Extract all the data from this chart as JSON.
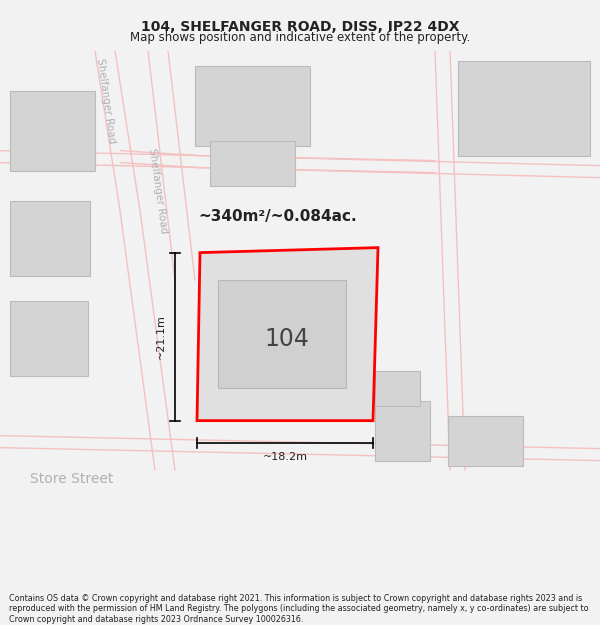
{
  "title": "104, SHELFANGER ROAD, DISS, IP22 4DX",
  "subtitle": "Map shows position and indicative extent of the property.",
  "footer": "Contains OS data © Crown copyright and database right 2021. This information is subject to Crown copyright and database rights 2023 and is reproduced with the permission of HM Land Registry. The polygons (including the associated geometry, namely x, y co-ordinates) are subject to Crown copyright and database rights 2023 Ordnance Survey 100026316.",
  "bg_color": "#f2f2f2",
  "map_bg": "#ffffff",
  "road_color": "#f5c0c0",
  "building_fill": "#d4d4d4",
  "building_edge": "#bbbbbb",
  "highlight_fill": "#e0e0e0",
  "highlight_edge": "#ff0000",
  "road_label_color": "#b0b0b0",
  "area_label": "~340m²/~0.084ac.",
  "number_label": "104",
  "dim_h": "~21.1m",
  "dim_w": "~18.2m",
  "street_label_1": "Shelfanger Road",
  "street_label_2": "Shelfanger Road",
  "street_label_3": "Store Street",
  "title_fontsize": 10,
  "subtitle_fontsize": 8.5,
  "footer_fontsize": 5.8
}
